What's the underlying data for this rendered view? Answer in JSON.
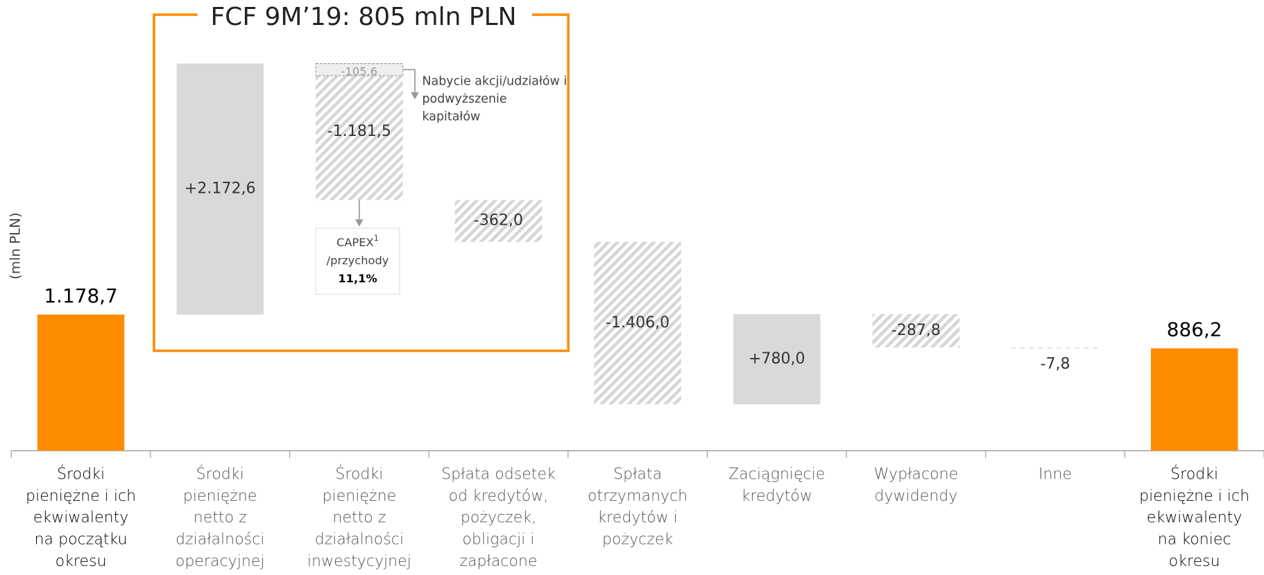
{
  "chart_data": {
    "type": "waterfall",
    "title": "FCF 9M’19: 805 mln PLN",
    "y_label": "(mln PLN)",
    "categories": [
      "Środki pieniężne i ich ekwiwalenty na początku okresu",
      "Środki pieniężne netto z działalności operacyjnej",
      "Środki pieniężne netto z działalności inwestycyjnej",
      "Spłata odsetek od kredytów, pożyczek, obligacji i zapłacone prowizje",
      "Spłata otrzymanych kredytów i pożyczek",
      "Zaciągnięcie kredytów",
      "Wypłacone dywidendy",
      "Inne",
      "Środki pieniężne i ich ekwiwalenty na koniec okresu"
    ],
    "measures": [
      "absolute",
      "relative",
      "relative",
      "relative",
      "relative",
      "relative",
      "relative",
      "relative",
      "total"
    ],
    "values": [
      1178.7,
      2172.6,
      -1181.5,
      -362.0,
      -1406.0,
      780.0,
      -287.8,
      -7.8,
      886.2
    ],
    "value_labels": [
      "1.178,7",
      "+2.172,6",
      "-1.181,5",
      "-362,0",
      "-1.406,0",
      "+780,0",
      "-287,8",
      "-7,8",
      "886,2"
    ],
    "colors": {
      "total": "#ff8c00",
      "increase": "#d9d9d9",
      "decrease": "#d9d9d9"
    },
    "ylim": [
      0,
      3900
    ],
    "sub_item": {
      "category": 2,
      "value": -105.6,
      "label": "-105,6",
      "text": "Nabycie akcji/udziałów i podwyższenie kapitałów"
    },
    "capex_box": {
      "title": "CAPEX",
      "superscript": "1",
      "subtitle": "/przychody",
      "value": 11.1,
      "value_label": "11,1%"
    }
  }
}
